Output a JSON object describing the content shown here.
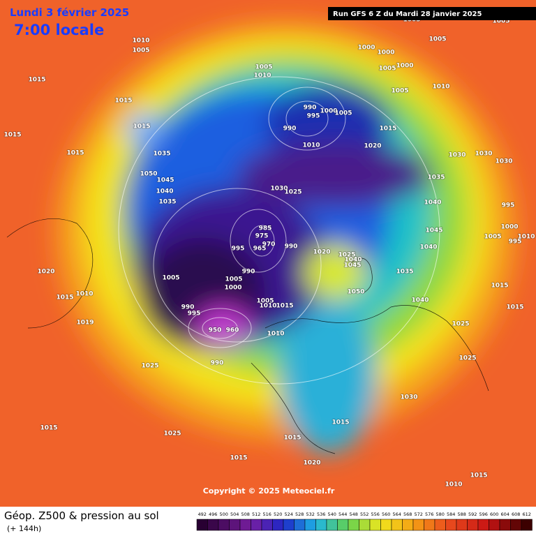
{
  "header": {
    "title": "Lundi 3 février 2025",
    "time": "7:00 locale",
    "run": "Run GFS 6 Z du Mardi 28 janvier 2025"
  },
  "copyright": "Copyright © 2025 Meteociel.fr",
  "legend": {
    "title": "Géop. Z500 & pression au sol",
    "lead": "(+ 144h)",
    "scale": [
      492,
      496,
      500,
      504,
      508,
      512,
      516,
      520,
      524,
      528,
      532,
      536,
      540,
      544,
      548,
      552,
      556,
      560,
      564,
      568,
      572,
      576,
      580,
      584,
      588,
      592,
      596,
      600,
      604,
      608,
      612
    ]
  },
  "isobar_labels": [
    1010,
    1005,
    1015,
    1015,
    1015,
    1015,
    1015,
    1035,
    1050,
    1045,
    1040,
    1035,
    1005,
    1010,
    1000,
    1000,
    1005,
    1000,
    1005,
    1010,
    990,
    995,
    1000,
    1005,
    990,
    1010,
    1015,
    1020,
    1030,
    1030,
    1030,
    1035,
    1030,
    1025,
    1040,
    995,
    1000,
    1005,
    995,
    1010,
    1045,
    1040,
    985,
    975,
    970,
    965,
    995,
    990,
    1020,
    1025,
    1040,
    1045,
    1035,
    990,
    1005,
    1005,
    1000,
    1015,
    1010,
    1015,
    1050,
    1040,
    1015,
    990,
    995,
    1005,
    1010,
    1015,
    1025,
    1019,
    1010,
    960,
    950,
    1020,
    1025,
    990,
    1025,
    1030,
    1015,
    1025,
    1015,
    1015,
    1015,
    1020,
    1010,
    1015,
    1005,
    1005,
    1005
  ]
}
